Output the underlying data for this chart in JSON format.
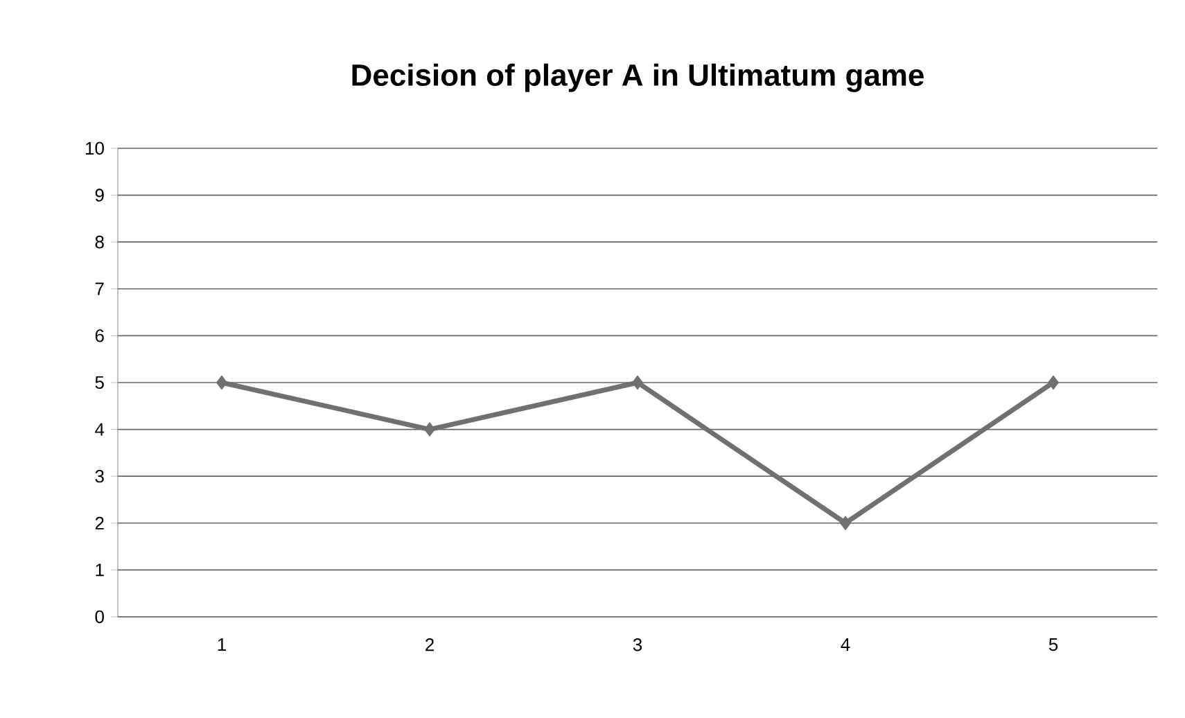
{
  "chart_data": {
    "type": "line",
    "title": "Decision of player A in Ultimatum game",
    "categories": [
      "1",
      "2",
      "3",
      "4",
      "5"
    ],
    "series": [
      {
        "color": "#707070",
        "values": [
          5,
          4,
          5,
          2,
          5
        ]
      }
    ],
    "ylim": [
      0,
      10
    ],
    "yticks": [
      0,
      1,
      2,
      3,
      4,
      5,
      6,
      7,
      8,
      9,
      10
    ],
    "grid": "y",
    "marker": "diamond",
    "line_style": "solid"
  }
}
